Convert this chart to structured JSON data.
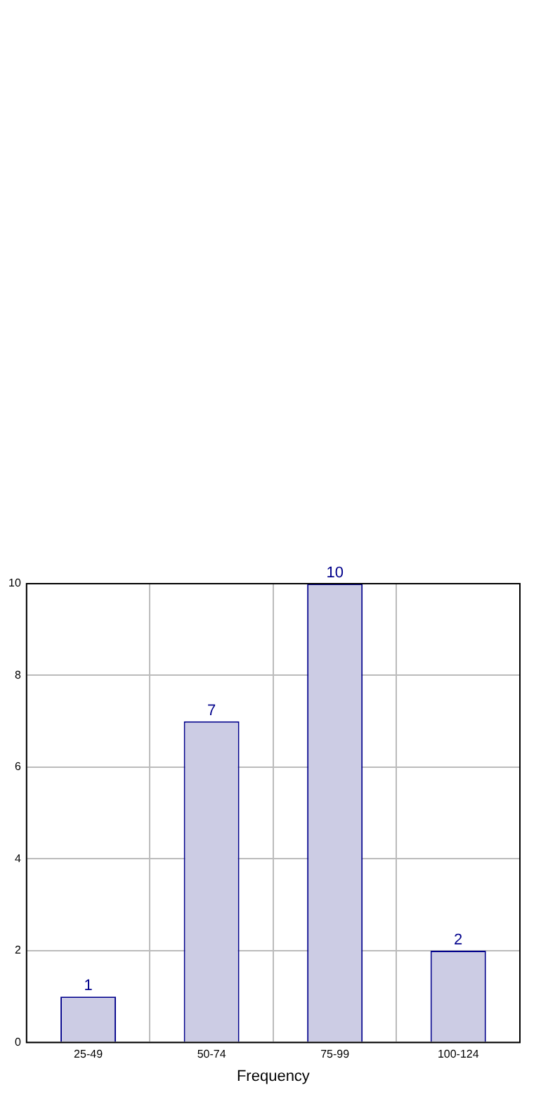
{
  "chart_data": {
    "type": "bar",
    "xlabel": "Frequency",
    "categories": [
      "25-49",
      "50-74",
      "75-99",
      "100-124"
    ],
    "values": [
      1,
      7,
      10,
      2
    ],
    "color": "#cccce4",
    "ylim": [
      0,
      10
    ],
    "yticks": [
      0,
      2,
      4,
      6,
      8,
      10
    ],
    "grid": true,
    "data_labels": true,
    "legend": false
  }
}
